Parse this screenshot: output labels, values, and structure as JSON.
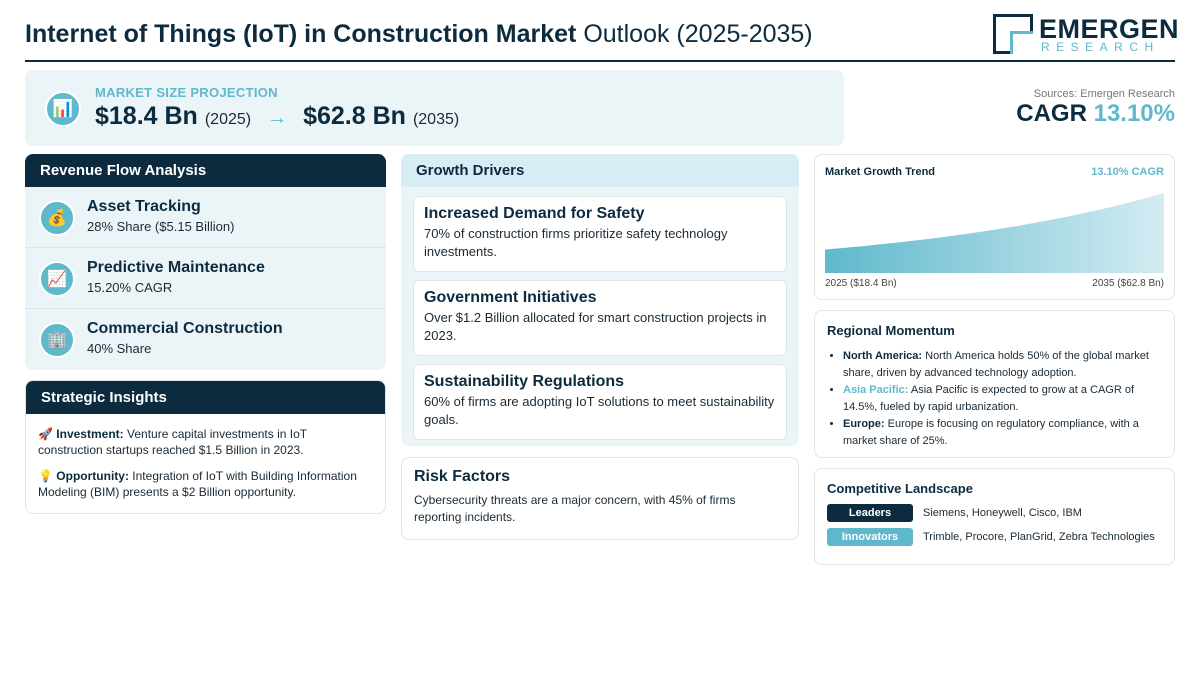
{
  "header": {
    "title_bold": "Internet of Things (IoT) in Construction Market",
    "title_rest": "Outlook (2025-2035)",
    "logo_main": "EMERGEN",
    "logo_sub": "RESEARCH"
  },
  "projection": {
    "label": "MARKET SIZE PROJECTION",
    "value_start": "$18.4 Bn",
    "year_start": "(2025)",
    "arrow": "→",
    "value_end": "$62.8 Bn",
    "year_end": "(2035)"
  },
  "summary": {
    "sources": "Sources: Emergen Research",
    "cagr_label": "CAGR",
    "cagr_value": "13.10%"
  },
  "revenue": {
    "heading": "Revenue Flow Analysis",
    "items": [
      {
        "icon": "money-bag-icon",
        "glyph": "💰",
        "title": "Asset Tracking",
        "sub": "28% Share ($5.15 Billion)"
      },
      {
        "icon": "chart-up-icon",
        "glyph": "📈",
        "title": "Predictive Maintenance",
        "sub": "15.20% CAGR"
      },
      {
        "icon": "building-icon",
        "glyph": "🏢",
        "title": "Commercial Construction",
        "sub": "40% Share"
      }
    ]
  },
  "strategic": {
    "heading": "Strategic Insights",
    "investment_glyph": "🚀",
    "investment_label": "Investment:",
    "investment_text": "Venture capital investments in IoT construction startups reached $1.5 Billion in 2023.",
    "opportunity_glyph": "💡",
    "opportunity_label": "Opportunity:",
    "opportunity_text": "Integration of IoT with Building Information Modeling (BIM) presents a $2 Billion opportunity."
  },
  "growth": {
    "heading": "Growth Drivers",
    "items": [
      {
        "title": "Increased Demand for Safety",
        "text": "70% of construction firms prioritize safety technology investments."
      },
      {
        "title": "Government Initiatives",
        "text": "Over $1.2 Billion allocated for smart construction projects in 2023."
      },
      {
        "title": "Sustainability Regulations",
        "text": "60% of firms are adopting IoT solutions to meet sustainability goals."
      }
    ]
  },
  "risk": {
    "title": "Risk Factors",
    "text": "Cybersecurity threats are a major concern, with 45% of firms reporting incidents."
  },
  "trend": {
    "title": "Market Growth Trend",
    "cagr": "13.10% CAGR",
    "left_label": "2025 ($18.4 Bn)",
    "right_label": "2035 ($62.8 Bn)"
  },
  "chart_data": {
    "type": "area",
    "title": "Market Growth Trend",
    "x": [
      2025,
      2035
    ],
    "values": [
      18.4,
      62.8
    ],
    "units": "USD Bn"
  },
  "regional": {
    "title": "Regional Momentum",
    "items": [
      {
        "region": "North America:",
        "text": "North America holds 50% of the global market share, driven by advanced technology adoption."
      },
      {
        "region": "Asia Pacific:",
        "text": "Asia Pacific is expected to grow at a CAGR of 14.5%, fueled by rapid urbanization."
      },
      {
        "region": "Europe:",
        "text": "Europe is focusing on regulatory compliance, with a market share of 25%."
      }
    ]
  },
  "competitive": {
    "title": "Competitive Landscape",
    "leaders_label": "Leaders",
    "leaders": "Siemens, Honeywell, Cisco, IBM",
    "innovators_label": "Innovators",
    "innovators": "Trimble, Procore, PlanGrid, Zebra Technologies"
  },
  "colors": {
    "navy": "#0d2b3e",
    "accent": "#5fb8cc",
    "panel": "#ebf5f8"
  }
}
